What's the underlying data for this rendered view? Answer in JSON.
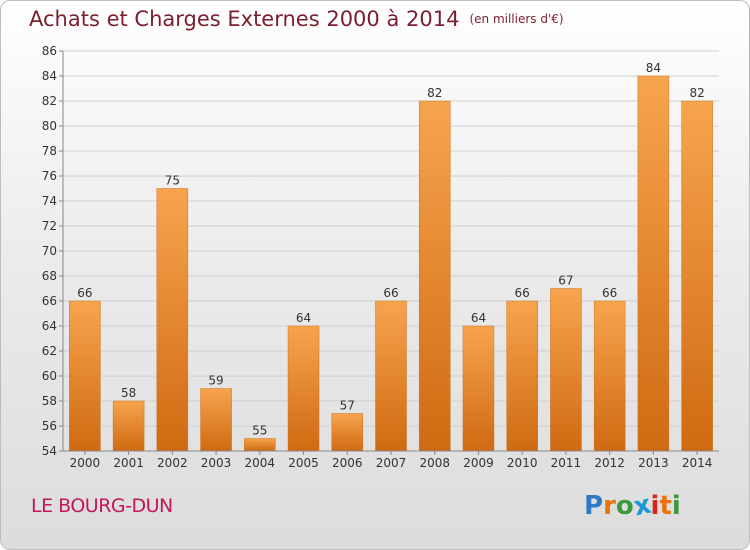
{
  "title": "Achats et Charges Externes 2000 à 2014",
  "unit": "(en milliers d'€)",
  "commune": "LE BOURG-DUN",
  "logo": {
    "letters": [
      "P",
      "r",
      "o",
      "x",
      "i",
      "t",
      "i"
    ],
    "colors": [
      "#2e7bc4",
      "#e8730c",
      "#3a9a3a",
      "#1a9ad6",
      "#d9261c",
      "#e8730c",
      "#3a9a3a"
    ]
  },
  "chart_data": {
    "type": "bar",
    "categories": [
      "2000",
      "2001",
      "2002",
      "2003",
      "2004",
      "2005",
      "2006",
      "2007",
      "2008",
      "2009",
      "2010",
      "2011",
      "2012",
      "2013",
      "2014"
    ],
    "values": [
      66,
      58,
      75,
      59,
      55,
      64,
      57,
      66,
      82,
      64,
      66,
      67,
      66,
      84,
      82
    ],
    "ylim": [
      54,
      86
    ],
    "yticks": [
      54,
      56,
      58,
      60,
      62,
      64,
      66,
      68,
      70,
      72,
      74,
      76,
      78,
      80,
      82,
      84,
      86
    ],
    "grid": true,
    "bar_color": "#f0922f"
  }
}
